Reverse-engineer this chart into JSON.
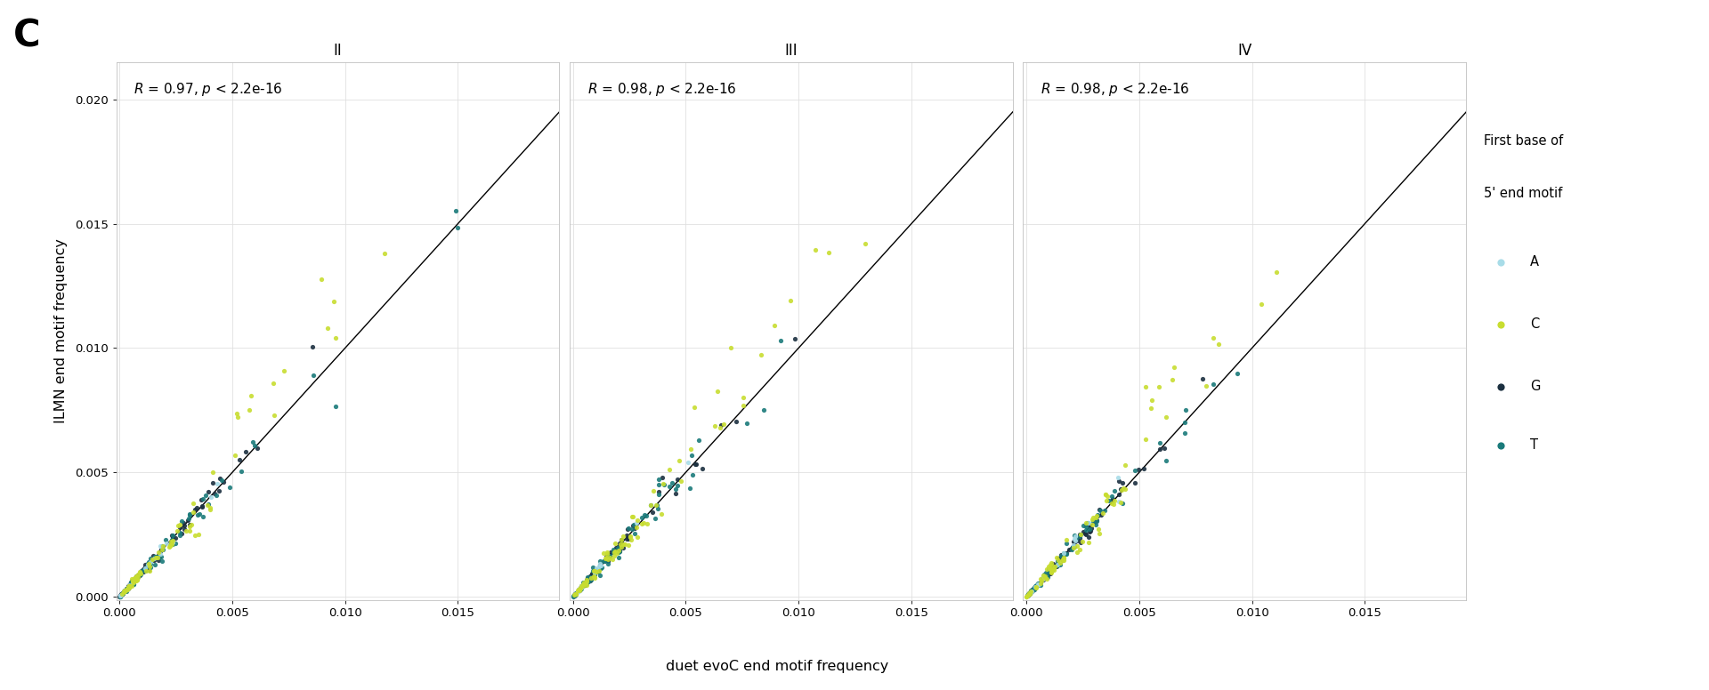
{
  "panels": [
    "II",
    "III",
    "IV"
  ],
  "annotations": [
    "R = 0.97, p < 2.2e−16",
    "R = 0.98, p < 2.2e−16",
    "R = 0.98, p < 2.2e−16"
  ],
  "annotations_display": [
    "R = 0.97, p < 2.2e-16",
    "R = 0.98, p < 2.2e-16",
    "R = 0.98, p < 2.2e-16"
  ],
  "xlabel": "duet evoC end motif frequency",
  "ylabel": "ILMN end motif frequency",
  "panel_label": "C",
  "xticks": [
    0.0,
    0.005,
    0.01,
    0.015
  ],
  "yticks": [
    0.0,
    0.005,
    0.01,
    0.015,
    0.02
  ],
  "colors": {
    "A": "#a8dce8",
    "C": "#c8dd30",
    "G": "#1c3040",
    "T": "#1a7a7a"
  },
  "legend_title": "First base of\n5' end motif",
  "background_color": "#ffffff",
  "grid_color": "#e0e0e0"
}
